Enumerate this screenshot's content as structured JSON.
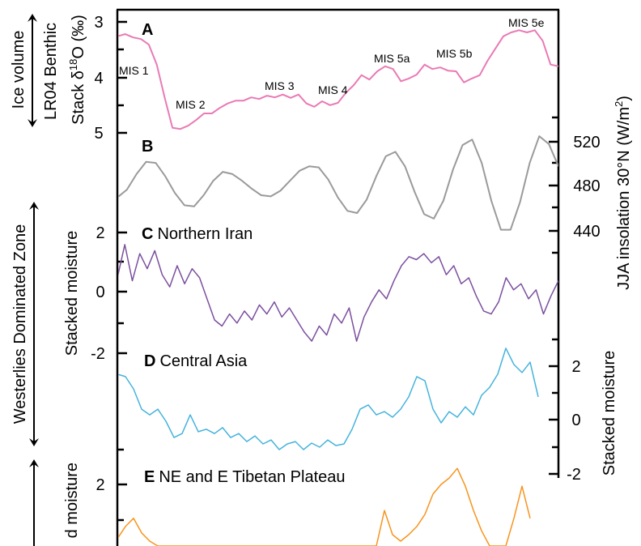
{
  "chart_data": {
    "type": "line",
    "panels": [
      {
        "id": "A",
        "letter": "A",
        "title": "",
        "ylabel_lines": [
          "LR04 Benthic"
        ],
        "ylabel_parts": [
          "Stack δ",
          "18",
          "O (‰)"
        ],
        "side_label": "Ice volume",
        "axis_side": "left",
        "y_inverted": true,
        "yticks": [
          "3",
          "4",
          "5"
        ],
        "color": "#e97ab5",
        "annotations": [
          "MIS 1",
          "MIS 2",
          "MIS 3",
          "MIS 4",
          "MIS 5a",
          "MIS 5b",
          "MIS 5e"
        ],
        "values": [
          3.26,
          3.22,
          3.28,
          3.31,
          3.41,
          3.77,
          4.36,
          4.91,
          4.93,
          4.87,
          4.77,
          4.65,
          4.65,
          4.55,
          4.47,
          4.42,
          4.42,
          4.36,
          4.39,
          4.33,
          4.36,
          4.31,
          4.37,
          4.31,
          4.47,
          4.53,
          4.43,
          4.5,
          4.46,
          4.28,
          4.14,
          3.96,
          4.04,
          3.89,
          3.8,
          3.85,
          4.07,
          4.02,
          3.95,
          3.77,
          3.85,
          3.82,
          3.88,
          3.89,
          4.09,
          4.02,
          3.96,
          3.7,
          3.48,
          3.26,
          3.19,
          3.15,
          3.19,
          3.15,
          3.34,
          3.77,
          3.8
        ]
      },
      {
        "id": "B",
        "letter": "B",
        "title": "",
        "ylabel_parts": [
          "JJA insolation 30°N (W/m",
          "2",
          ")"
        ],
        "axis_side": "right",
        "yticks": [
          "520",
          "480",
          "440"
        ],
        "color": "#9a9a9a",
        "values": [
          470,
          477,
          491,
          502,
          501,
          489,
          474,
          463,
          462,
          472,
          485,
          493,
          491,
          485,
          478,
          472,
          471,
          476,
          485,
          494,
          498,
          497,
          486,
          470,
          458,
          456,
          468,
          489,
          507,
          511,
          498,
          475,
          455,
          451,
          467,
          495,
          517,
          522,
          501,
          467,
          441,
          441,
          466,
          501,
          525,
          518,
          498
        ]
      },
      {
        "id": "C",
        "letter": "C",
        "title": "Northern Iran",
        "ylabel": "Stacked moisture",
        "side_label": "Westerlies Dominated Zone",
        "axis_side": "left",
        "yticks": [
          "2",
          "0",
          "-2"
        ],
        "color": "#7b4f9e",
        "values": [
          0.5,
          1.6,
          0.4,
          1.3,
          0.8,
          1.4,
          0.6,
          0.2,
          0.9,
          0.3,
          0.8,
          0.5,
          -0.2,
          -0.9,
          -1.1,
          -0.7,
          -1.0,
          -0.6,
          -0.9,
          -0.4,
          -0.7,
          -0.3,
          -0.8,
          -0.5,
          -0.9,
          -1.3,
          -1.6,
          -1.1,
          -1.4,
          -0.7,
          -1.0,
          -0.5,
          -1.6,
          -0.8,
          -0.3,
          0.1,
          -0.2,
          0.4,
          0.9,
          1.2,
          1.1,
          1.3,
          1.0,
          1.2,
          0.6,
          0.9,
          0.3,
          0.5,
          -0.1,
          -0.6,
          -0.7,
          -0.3,
          0.5,
          0.1,
          0.3,
          -0.2,
          0.1,
          -0.7,
          -0.1,
          0.4
        ]
      },
      {
        "id": "D",
        "letter": "D",
        "title": "Central Asia",
        "ylabel": "Stacked moisture",
        "axis_side": "right",
        "yticks": [
          "2",
          "0",
          "-2"
        ],
        "color": "#45b3dc",
        "values": [
          1.7,
          1.61,
          1.15,
          0.39,
          0.18,
          0.39,
          -0.06,
          -0.67,
          -0.52,
          0.18,
          -0.45,
          -0.36,
          -0.52,
          -0.3,
          -0.67,
          -0.52,
          -0.82,
          -0.61,
          -0.91,
          -0.76,
          -1.12,
          -0.91,
          -0.82,
          -1.12,
          -0.88,
          -1.03,
          -0.76,
          -0.97,
          -0.91,
          -0.36,
          0.39,
          0.55,
          0.18,
          0.3,
          0.09,
          0.39,
          0.85,
          1.61,
          1.45,
          0.39,
          -0.12,
          0.3,
          0.09,
          0.48,
          0.18,
          0.91,
          1.21,
          1.7,
          2.67,
          2.06,
          1.76,
          2.15,
          0.85
        ]
      },
      {
        "id": "E",
        "letter": "E",
        "title": "NE and E Tibetan Plateau",
        "ylabel": "Stacked moisture",
        "axis_side": "left",
        "yticks": [
          "2"
        ],
        "color": "#f7941d",
        "values": [
          0.48,
          0.82,
          1.05,
          0.64,
          0.41,
          -0.1,
          -0.4,
          -0.5,
          -0.3,
          -0.6,
          -0.4,
          -0.5,
          -0.3,
          -0.5,
          -0.6,
          -0.4,
          -0.5,
          -0.3,
          -0.4,
          -0.6,
          -0.5,
          -0.4,
          -0.5,
          -0.6,
          -0.4,
          -0.3,
          -0.5,
          -0.4,
          -0.6,
          -0.5,
          -0.4,
          -0.3,
          -0.2,
          1.27,
          0.59,
          0.41,
          0.59,
          0.82,
          1.16,
          1.73,
          2.0,
          2.18,
          2.45,
          1.95,
          1.27,
          0.7,
          0.18,
          -0.1,
          0.02,
          1.05,
          1.95,
          1.05
        ]
      }
    ]
  }
}
